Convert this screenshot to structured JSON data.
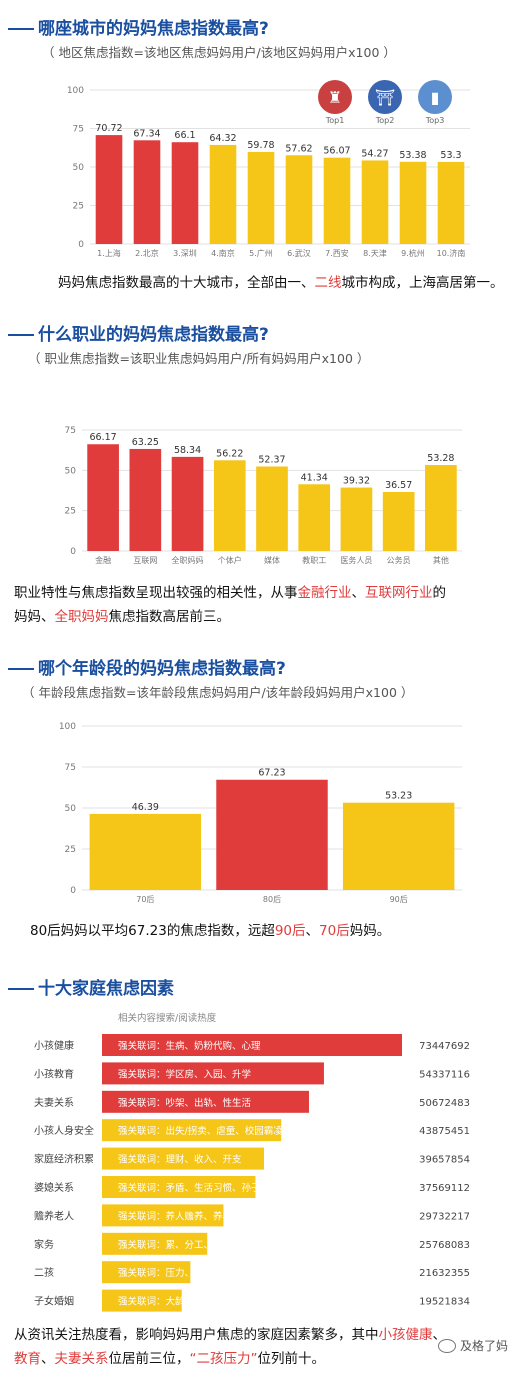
{
  "sections": [
    {
      "title": "哪座城市的妈妈焦虑指数最高?",
      "formula": "（ 地区焦虑指数=该地区焦虑妈妈用户/该地区妈妈用户x100 ）",
      "caption_parts": [
        "妈妈焦虑指数最高的十大城市，全部由一、",
        "二线",
        "城市构成，上海高居第一。"
      ]
    },
    {
      "title": "什么职业的妈妈焦虑指数最高?",
      "formula": "（ 职业焦虑指数=该职业焦虑妈妈用户/所有妈妈用户x100 ）",
      "caption_line1": [
        "职业特性与焦虑指数呈现出较强的相关性，从事",
        "金融行业",
        "、",
        "互联网行业",
        "的"
      ],
      "caption_line2": [
        "妈妈、",
        "全职妈妈",
        "焦虑指数高居前三。"
      ]
    },
    {
      "title": "哪个年龄段的妈妈焦虑指数最高?",
      "formula": "（ 年龄段焦虑指数=该年龄段焦虑妈妈用户/该年龄段妈妈用户x100 ）",
      "caption_parts": [
        "80后妈妈以平均67.23的焦虑指数，远超",
        "90后",
        "、",
        "70后",
        "妈妈。"
      ]
    },
    {
      "title": "十大家庭焦虑因素",
      "subtitle": "相关内容搜索/阅读热度",
      "caption_line1": [
        "从资讯关注热度看，影响妈妈用户焦虑的家庭因素繁多，其中",
        "小孩健康",
        "、"
      ],
      "caption_line2": [
        "教育",
        "、",
        "夫妻关系",
        "位居前三位，",
        "“二孩压力”",
        "位列前十。"
      ]
    }
  ],
  "badges": [
    {
      "label": "Top1",
      "icon": "oriental-pearl-tower-icon"
    },
    {
      "label": "Top2",
      "icon": "temple-of-heaven-icon"
    },
    {
      "label": "Top3",
      "icon": "skyscraper-icon"
    }
  ],
  "watermark": "及格了妈",
  "colors": {
    "red": "#e03c3c",
    "yellow": "#f5c518",
    "blue": "#1a4fa0",
    "grid": "#e2e2e2"
  },
  "chart_data": [
    {
      "type": "bar",
      "categories": [
        "1.上海",
        "2.北京",
        "3.深圳",
        "4.南京",
        "5.广州",
        "6.武汉",
        "7.西安",
        "8.天津",
        "9.杭州",
        "10.济南"
      ],
      "values": [
        70.72,
        67.34,
        66.1,
        64.32,
        59.78,
        57.62,
        56.07,
        54.27,
        53.38,
        53.3
      ],
      "colors": [
        "#e03c3c",
        "#e03c3c",
        "#e03c3c",
        "#f5c518",
        "#f5c518",
        "#f5c518",
        "#f5c518",
        "#f5c518",
        "#f5c518",
        "#f5c518"
      ],
      "yticks": [
        0,
        25,
        50,
        75,
        100
      ],
      "ylim": [
        0,
        100
      ],
      "grid": true
    },
    {
      "type": "bar",
      "categories": [
        "金融",
        "互联网",
        "全职妈妈",
        "个体户",
        "媒体",
        "教职工",
        "医务人员",
        "公务员",
        "其他"
      ],
      "values": [
        66.17,
        63.25,
        58.34,
        56.22,
        52.37,
        41.34,
        39.32,
        36.57,
        53.28
      ],
      "colors": [
        "#e03c3c",
        "#e03c3c",
        "#e03c3c",
        "#f5c518",
        "#f5c518",
        "#f5c518",
        "#f5c518",
        "#f5c518",
        "#f5c518"
      ],
      "yticks": [
        0,
        25,
        50,
        75
      ],
      "ylim": [
        0,
        75
      ],
      "grid": true
    },
    {
      "type": "bar",
      "categories": [
        "70后",
        "80后",
        "90后"
      ],
      "values": [
        46.39,
        67.23,
        53.23
      ],
      "colors": [
        "#f5c518",
        "#e03c3c",
        "#f5c518"
      ],
      "yticks": [
        0,
        25,
        50,
        75,
        100
      ],
      "ylim": [
        0,
        100
      ],
      "grid": true
    },
    {
      "type": "bar",
      "orientation": "horizontal",
      "categories": [
        "小孩健康",
        "小孩教育",
        "夫妻关系",
        "小孩人身安全",
        "家庭经济积累",
        "婆媳关系",
        "赡养老人",
        "家务",
        "二孩",
        "子女婚姻"
      ],
      "values": [
        73447692,
        54337116,
        50672483,
        43875451,
        39657854,
        37569112,
        29732217,
        25768083,
        21632355,
        19521834
      ],
      "bar_texts": [
        "强关联词：生病、奶粉代购、心理",
        "强关联词：学区房、入园、升学",
        "强关联词：吵架、出轨、性生活",
        "强关联词：出失/拐卖、虐童、校园霸凌",
        "强关联词：理财、收入、开支",
        "强关联词：矛盾、生活习惯、孙子教育",
        "强关联词：养人赡养、养老院、空巢",
        "强关联词：累、分工、保姆",
        "强关联词：压力、精神护理、孤独",
        "强关联词：大龄剩女、买房、生子"
      ],
      "colors": [
        "#e03c3c",
        "#e03c3c",
        "#e03c3c",
        "#f5c518",
        "#f5c518",
        "#f5c518",
        "#f5c518",
        "#f5c518",
        "#f5c518",
        "#f5c518"
      ]
    }
  ]
}
